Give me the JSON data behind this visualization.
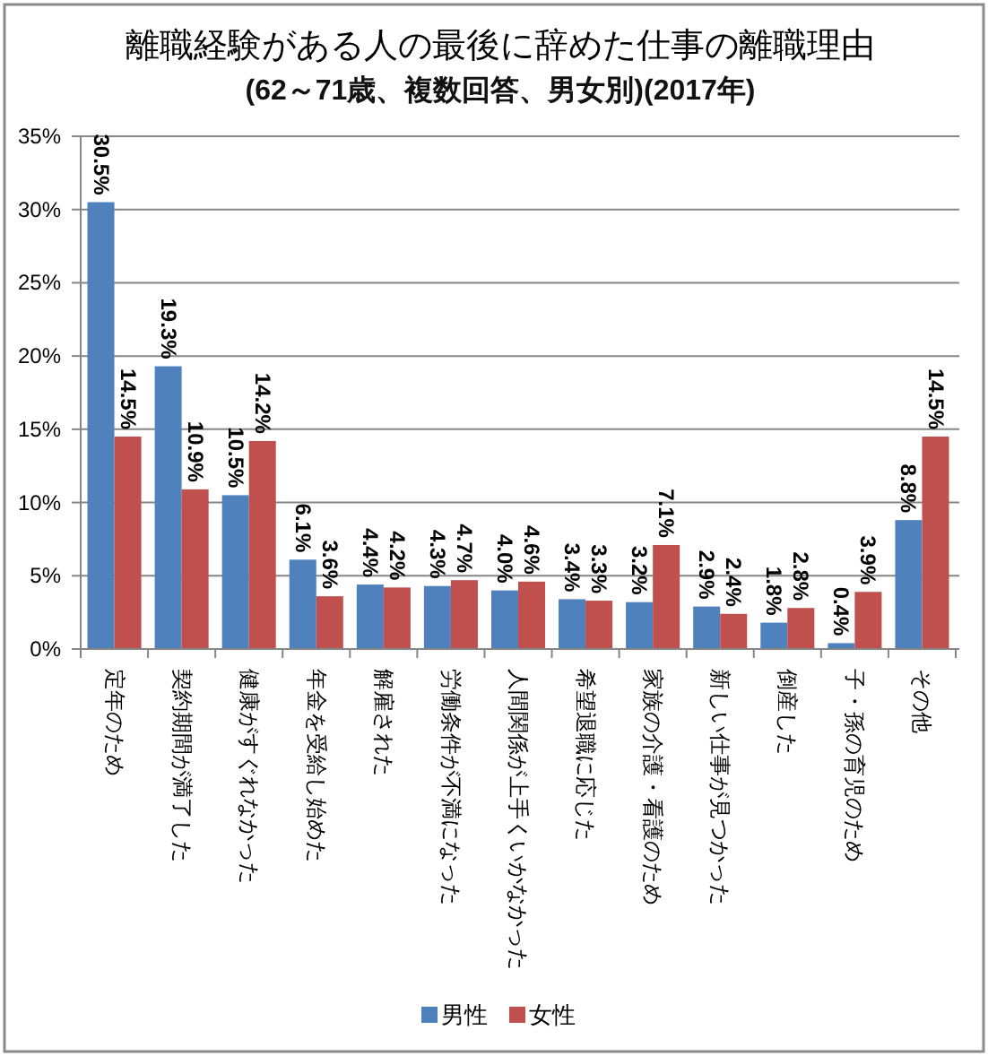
{
  "chart_data": {
    "type": "bar",
    "title": "離職経験がある人の最後に辞めた仕事の離職理由",
    "subtitle": "(62～71歳、複数回答、男女別)(2017年)",
    "categories": [
      "定年のため",
      "契約期間が満了した",
      "健康がすぐれなかった",
      "年金を受給し始めた",
      "解雇された",
      "労働条件が不満になった",
      "人間関係が上手くいかなかった",
      "希望退職に応じた",
      "家族の介護・看護のため",
      "新しい仕事が見つかった",
      "倒産した",
      "子・孫の育児のため",
      "その他"
    ],
    "series": [
      {
        "name": "男性",
        "color": "#4f81bd",
        "values": [
          30.5,
          19.3,
          10.5,
          6.1,
          4.4,
          4.3,
          4.0,
          3.4,
          3.2,
          2.9,
          1.8,
          0.4,
          8.8
        ],
        "value_labels": [
          "30.5%",
          "19.3%",
          "10.5%",
          "6.1%",
          "4.4%",
          "4.3%",
          "4.0%",
          "3.4%",
          "3.2%",
          "2.9%",
          "1.8%",
          "0.4%",
          "8.8%"
        ]
      },
      {
        "name": "女性",
        "color": "#c0504d",
        "values": [
          14.5,
          10.9,
          14.2,
          3.6,
          4.2,
          4.7,
          4.6,
          3.3,
          7.1,
          2.4,
          2.8,
          3.9,
          14.5
        ],
        "value_labels": [
          "14.5%",
          "10.9%",
          "14.2%",
          "3.6%",
          "4.2%",
          "4.7%",
          "4.6%",
          "3.3%",
          "7.1%",
          "2.4%",
          "2.8%",
          "3.9%",
          "14.5%"
        ]
      }
    ],
    "ylim": [
      0,
      35
    ],
    "yticks": [
      {
        "value": 0,
        "label": "0%"
      },
      {
        "value": 5,
        "label": "5%"
      },
      {
        "value": 10,
        "label": "10%"
      },
      {
        "value": 15,
        "label": "15%"
      },
      {
        "value": 20,
        "label": "20%"
      },
      {
        "value": 25,
        "label": "25%"
      },
      {
        "value": 30,
        "label": "30%"
      },
      {
        "value": 35,
        "label": "35%"
      }
    ],
    "grid": "y",
    "legend": "bottom"
  }
}
